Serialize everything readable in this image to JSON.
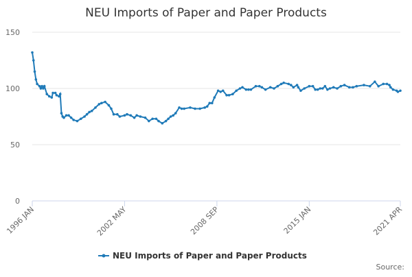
{
  "chart_data": {
    "type": "line",
    "title": "NEU Imports of Paper and Paper Products",
    "x": [
      "1996 JAN",
      "1996 FEB",
      "1996 MAR",
      "1996 APR",
      "1996 MAY",
      "1996 JUL",
      "1996 AUG",
      "1996 SEP",
      "1996 OCT",
      "1996 NOV",
      "1997 JAN",
      "1997 MAR",
      "1997 MAY",
      "1997 JUN",
      "1997 AUG",
      "1997 SEP",
      "1997 NOV",
      "1997 DEC",
      "1998 JAN",
      "1998 FEB",
      "1998 MAR",
      "1998 MAY",
      "1998 JUL",
      "1998 SEP",
      "1998 NOV",
      "1999 FEB",
      "1999 MAY",
      "1999 AUG",
      "1999 OCT",
      "1999 DEC",
      "2000 FEB",
      "2000 MAY",
      "2000 AUG",
      "2000 OCT",
      "2001 JAN",
      "2001 APR",
      "2001 JUN",
      "2001 AUG",
      "2001 NOV",
      "2002 JAN",
      "2002 MAY",
      "2002 JUL",
      "2002 OCT",
      "2003 JAN",
      "2003 MAR",
      "2003 JUN",
      "2003 OCT",
      "2004 JAN",
      "2004 APR",
      "2004 JUL",
      "2004 SEP",
      "2004 DEC",
      "2005 MAR",
      "2005 MAY",
      "2005 JUL",
      "2005 SEP",
      "2005 NOV",
      "2006 FEB",
      "2006 APR",
      "2006 JUN",
      "2006 NOV",
      "2007 MAR",
      "2007 JUL",
      "2007 NOV",
      "2008 JAN",
      "2008 MAR",
      "2008 MAY",
      "2008 JUL",
      "2008 OCT",
      "2008 DEC",
      "2009 FEB",
      "2009 MAY",
      "2009 JUL",
      "2009 OCT",
      "2010 JAN",
      "2010 APR",
      "2010 JUN",
      "2010 SEP",
      "2010 NOV",
      "2011 JAN",
      "2011 MAY",
      "2011 AUG",
      "2011 OCT",
      "2012 JAN",
      "2012 MAY",
      "2012 AUG",
      "2012 NOV",
      "2013 FEB",
      "2013 APR",
      "2013 AUG",
      "2013 OCT",
      "2013 DEC",
      "2014 MAR",
      "2014 APR",
      "2014 JUN",
      "2014 SEP",
      "2015 JAN",
      "2015 APR",
      "2015 JUN",
      "2015 AUG",
      "2015 OCT",
      "2015 DEC",
      "2016 FEB",
      "2016 APR",
      "2016 JUN",
      "2016 SEP",
      "2016 DEC",
      "2017 MAR",
      "2017 JUN",
      "2017 OCT",
      "2018 JAN",
      "2018 APR",
      "2018 OCT",
      "2019 MAR",
      "2019 JUL",
      "2019 OCT",
      "2020 FEB",
      "2020 MAY",
      "2020 JUL",
      "2020 AUG",
      "2020 OCT",
      "2021 JAN",
      "2021 FEB",
      "2021 APR"
    ],
    "series": [
      {
        "name": "NEU Imports of Paper and Paper Products",
        "color": "#1f7ab8",
        "values": [
          132,
          125,
          115,
          108,
          104,
          102,
          100,
          102,
          100,
          102,
          95,
          93,
          92,
          96,
          96,
          94,
          93,
          95,
          78,
          75,
          74,
          76,
          76,
          74,
          72,
          71,
          73,
          75,
          77,
          79,
          80,
          83,
          86,
          87,
          88,
          85,
          82,
          77,
          77,
          75,
          76,
          77,
          76,
          74,
          76,
          75,
          74,
          71,
          73,
          73,
          71,
          69,
          71,
          73,
          75,
          76,
          78,
          83,
          82,
          82,
          83,
          82,
          82,
          83,
          84,
          87,
          87,
          92,
          98,
          97,
          98,
          94,
          94,
          95,
          98,
          100,
          101,
          99,
          99,
          99,
          102,
          102,
          101,
          99,
          101,
          100,
          102,
          104,
          105,
          104,
          103,
          101,
          103,
          101,
          98,
          100,
          102,
          102,
          99,
          99,
          100,
          100,
          102,
          99,
          100,
          101,
          100,
          102,
          103,
          101,
          101,
          102,
          103,
          102,
          106,
          102,
          104,
          104,
          103,
          101,
          99,
          98,
          97,
          98
        ]
      }
    ],
    "xticks": [
      "1996 JAN",
      "2002 MAY",
      "2008 SEP",
      "2015 JAN",
      "2021 APR"
    ],
    "ylim": [
      0,
      150
    ],
    "yticks": [
      0,
      50,
      100,
      150
    ],
    "grid": true,
    "source": "Source:"
  }
}
